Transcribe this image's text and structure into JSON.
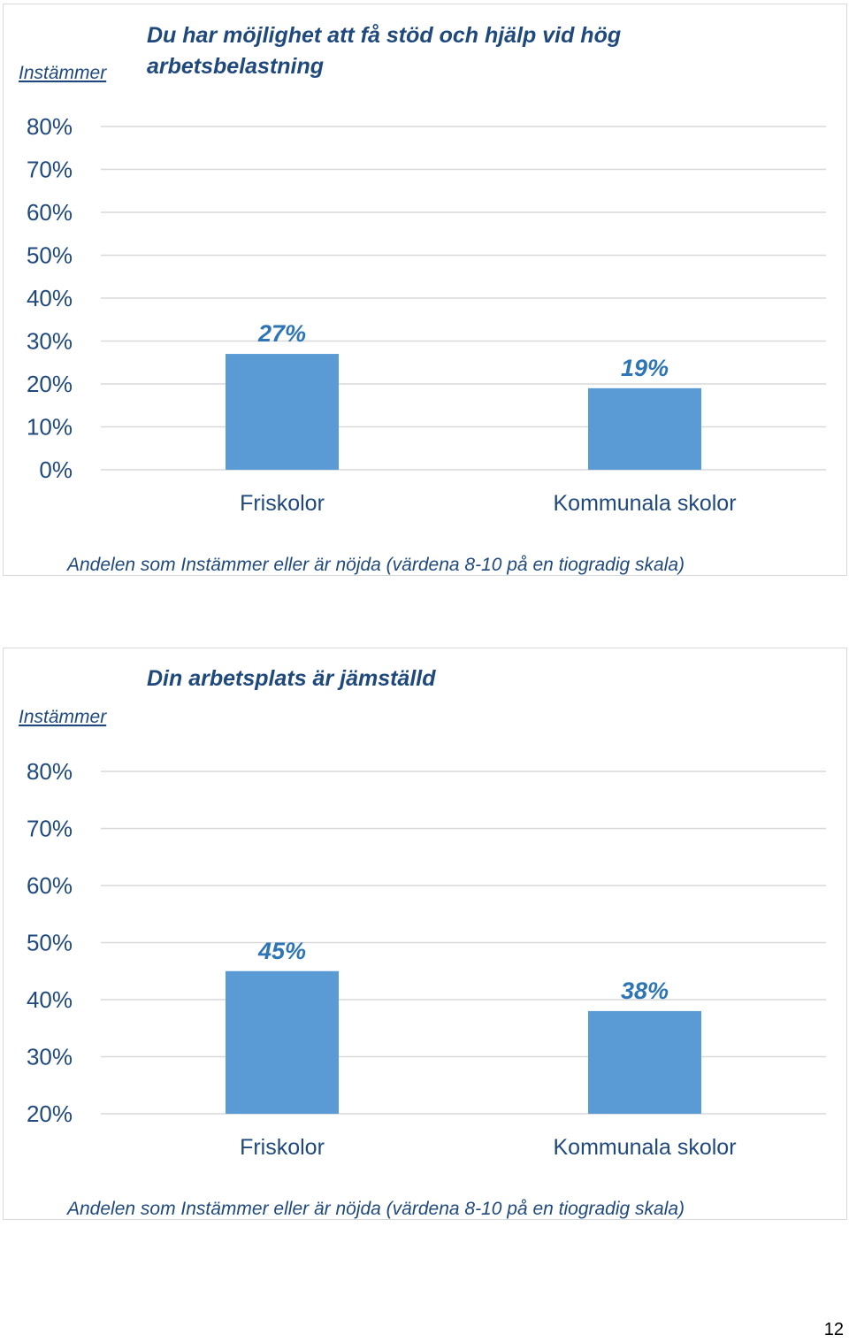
{
  "colors": {
    "bar": "#5b9bd5",
    "text": "#1f497d",
    "data_label": "#2e75b6",
    "grid": "#d9d9d9"
  },
  "page_number": "12",
  "chart_data": [
    {
      "type": "bar",
      "title": "Du har möjlighet att få stöd och hjälp vid hög arbetsbelastning",
      "title_lines": [
        "Du har möjlighet att få stöd och hjälp vid hög",
        "arbetsbelastning"
      ],
      "ylabel": "Instämmer",
      "xlabel": "Andelen som Instämmer eller är nöjda (värdena 8-10 på en tiogradig skala)",
      "categories": [
        "Friskolor",
        "Kommunala skolor"
      ],
      "values": [
        27,
        19
      ],
      "data_labels": [
        "27%",
        "19%"
      ],
      "ylim": [
        0,
        80
      ],
      "yticks": [
        0,
        10,
        20,
        30,
        40,
        50,
        60,
        70,
        80
      ],
      "ytick_labels": [
        "0%",
        "10%",
        "20%",
        "30%",
        "40%",
        "50%",
        "60%",
        "70%",
        "80%"
      ],
      "grid": true,
      "legend": "none"
    },
    {
      "type": "bar",
      "title": "Din arbetsplats är jämställd",
      "title_lines": [
        "Din arbetsplats är jämställd"
      ],
      "ylabel": "Instämmer",
      "xlabel": "Andelen som Instämmer eller är nöjda (värdena 8-10 på en tiogradig skala)",
      "categories": [
        "Friskolor",
        "Kommunala skolor"
      ],
      "values": [
        45,
        38
      ],
      "data_labels": [
        "45%",
        "38%"
      ],
      "ylim": [
        20,
        80
      ],
      "yticks": [
        20,
        30,
        40,
        50,
        60,
        70,
        80
      ],
      "ytick_labels": [
        "20%",
        "30%",
        "40%",
        "50%",
        "60%",
        "70%",
        "80%"
      ],
      "grid": true,
      "legend": "none"
    }
  ]
}
